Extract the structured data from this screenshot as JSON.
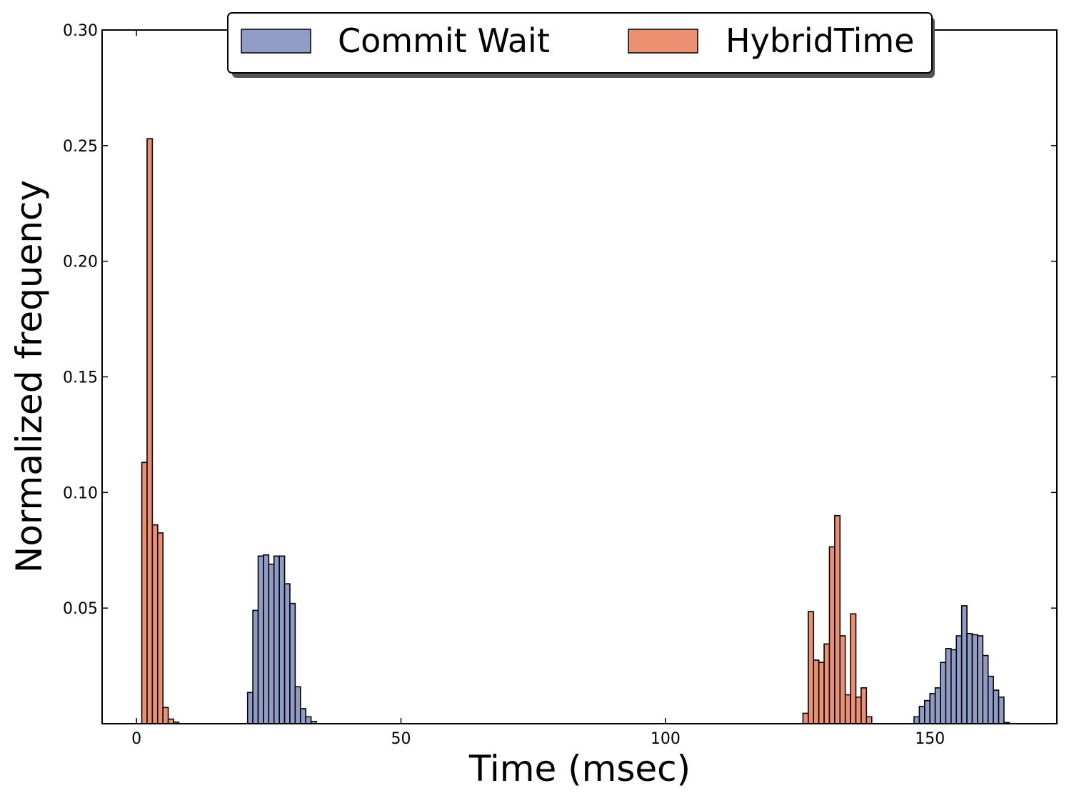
{
  "chart_data": {
    "type": "bar",
    "title": "",
    "xlabel": "Time (msec)",
    "ylabel": "Normalized frequency",
    "xlim": [
      -6.5,
      174
    ],
    "ylim": [
      0,
      0.3
    ],
    "xticks": [
      {
        "value": 0,
        "label": "0"
      },
      {
        "value": 50,
        "label": "50"
      },
      {
        "value": 100,
        "label": "100"
      },
      {
        "value": 150,
        "label": "150"
      }
    ],
    "yticks": [
      {
        "value": 0.05,
        "label": "0.05"
      },
      {
        "value": 0.1,
        "label": "0.10"
      },
      {
        "value": 0.15,
        "label": "0.15"
      },
      {
        "value": 0.2,
        "label": "0.20"
      },
      {
        "value": 0.25,
        "label": "0.25"
      },
      {
        "value": 0.3,
        "label": "0.30"
      }
    ],
    "bin_width": 1.0,
    "legend_placement": "top-center",
    "series": [
      {
        "name": "Commit Wait",
        "color": "#8E9CC6",
        "bins": [
          {
            "x": 21,
            "y": 0.0135
          },
          {
            "x": 22,
            "y": 0.049
          },
          {
            "x": 23,
            "y": 0.0725
          },
          {
            "x": 24,
            "y": 0.073
          },
          {
            "x": 25,
            "y": 0.069
          },
          {
            "x": 26,
            "y": 0.0725
          },
          {
            "x": 27,
            "y": 0.0725
          },
          {
            "x": 28,
            "y": 0.0605
          },
          {
            "x": 29,
            "y": 0.052
          },
          {
            "x": 30,
            "y": 0.016
          },
          {
            "x": 31,
            "y": 0.0065
          },
          {
            "x": 32,
            "y": 0.003
          },
          {
            "x": 33,
            "y": 0.001
          },
          {
            "x": 147,
            "y": 0.003
          },
          {
            "x": 148,
            "y": 0.0075
          },
          {
            "x": 149,
            "y": 0.01
          },
          {
            "x": 150,
            "y": 0.013
          },
          {
            "x": 151,
            "y": 0.0155
          },
          {
            "x": 152,
            "y": 0.0265
          },
          {
            "x": 153,
            "y": 0.0325
          },
          {
            "x": 154,
            "y": 0.032
          },
          {
            "x": 155,
            "y": 0.038
          },
          {
            "x": 156,
            "y": 0.051
          },
          {
            "x": 157,
            "y": 0.039
          },
          {
            "x": 158,
            "y": 0.0385
          },
          {
            "x": 159,
            "y": 0.038
          },
          {
            "x": 160,
            "y": 0.0295
          },
          {
            "x": 161,
            "y": 0.0205
          },
          {
            "x": 162,
            "y": 0.0145
          },
          {
            "x": 163,
            "y": 0.0115
          },
          {
            "x": 164,
            "y": 0.0005
          }
        ]
      },
      {
        "name": "HybridTime",
        "color": "#EB9070",
        "bins": [
          {
            "x": 1,
            "y": 0.113
          },
          {
            "x": 2,
            "y": 0.253
          },
          {
            "x": 3,
            "y": 0.086
          },
          {
            "x": 4,
            "y": 0.0825
          },
          {
            "x": 5,
            "y": 0.007
          },
          {
            "x": 6,
            "y": 0.002
          },
          {
            "x": 7,
            "y": 0.0007
          },
          {
            "x": 126,
            "y": 0.0045
          },
          {
            "x": 127,
            "y": 0.0485
          },
          {
            "x": 128,
            "y": 0.0275
          },
          {
            "x": 129,
            "y": 0.0265
          },
          {
            "x": 130,
            "y": 0.0345
          },
          {
            "x": 131,
            "y": 0.0765
          },
          {
            "x": 132,
            "y": 0.09
          },
          {
            "x": 133,
            "y": 0.038
          },
          {
            "x": 134,
            "y": 0.0125
          },
          {
            "x": 135,
            "y": 0.0475
          },
          {
            "x": 136,
            "y": 0.0115
          },
          {
            "x": 137,
            "y": 0.0155
          },
          {
            "x": 138,
            "y": 0.003
          }
        ]
      }
    ]
  }
}
